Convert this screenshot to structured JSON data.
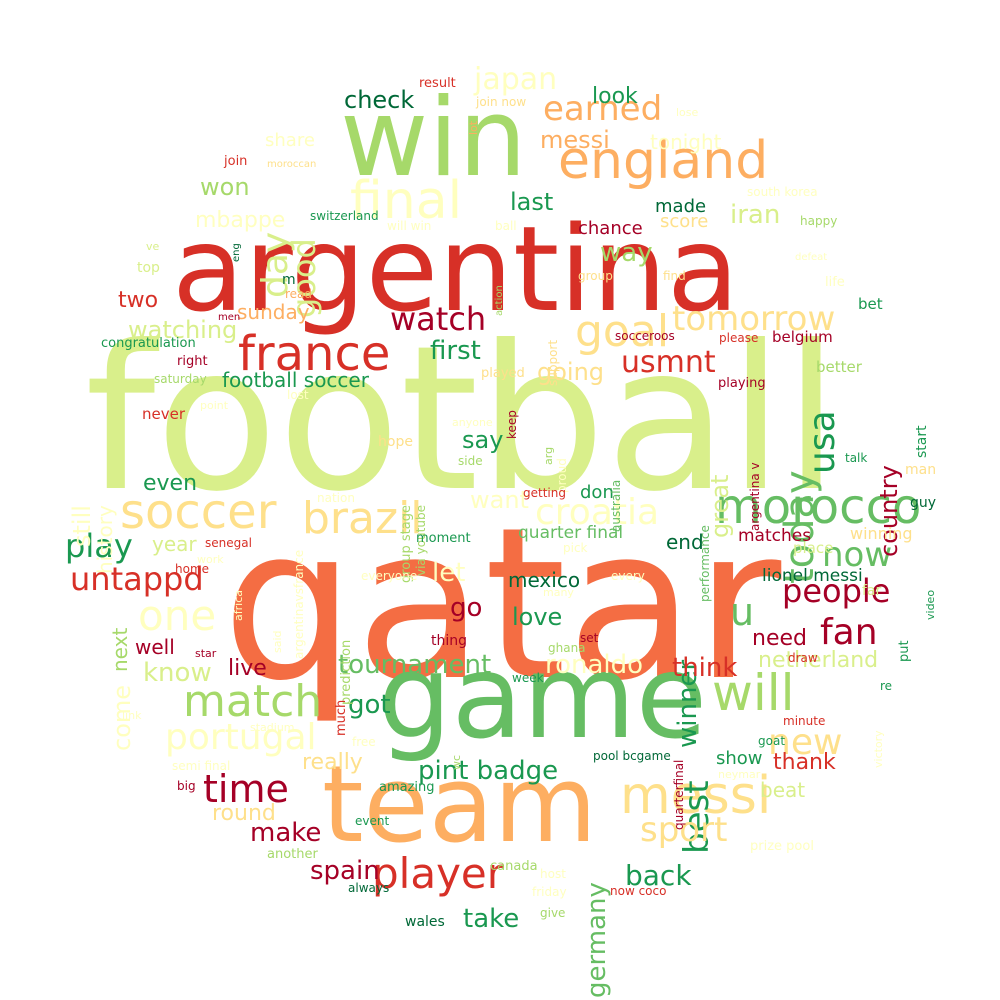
{
  "palette": [
    "#a50026",
    "#d73027",
    "#f46d43",
    "#fdae61",
    "#fee08b",
    "#ffffbf",
    "#d9ef8b",
    "#a6d96a",
    "#66bd63",
    "#1a9850",
    "#006837"
  ],
  "words": [
    {
      "text": "football",
      "color": "#d9ef8b"
    },
    {
      "text": "qatar",
      "color": "#f46d43"
    },
    {
      "text": "argentina",
      "color": "#d73027"
    },
    {
      "text": "win",
      "color": "#a6d96a"
    },
    {
      "text": "game",
      "color": "#66bd63"
    },
    {
      "text": "team",
      "color": "#fdae61"
    },
    {
      "text": "england",
      "color": "#fdae61"
    },
    {
      "text": "final",
      "color": "#ffffbf"
    },
    {
      "text": "france",
      "color": "#d73027"
    },
    {
      "text": "morocco",
      "color": "#66bd63"
    },
    {
      "text": "messi",
      "color": "#fee08b"
    },
    {
      "text": "soccer",
      "color": "#fee08b"
    },
    {
      "text": "brazil",
      "color": "#fee08b"
    },
    {
      "text": "goal",
      "color": "#fee08b"
    },
    {
      "text": "will",
      "color": "#a6d96a"
    },
    {
      "text": "match",
      "color": "#a6d96a"
    },
    {
      "text": "player",
      "color": "#d73027"
    },
    {
      "text": "today",
      "color": "#66bd63"
    },
    {
      "text": "usa",
      "color": "#1a9850"
    },
    {
      "text": "croatia",
      "color": "#ffffbf"
    },
    {
      "text": "tomorrow",
      "color": "#fee08b"
    },
    {
      "text": "portugal",
      "color": "#ffffbf"
    },
    {
      "text": "time",
      "color": "#a50026"
    },
    {
      "text": "people",
      "color": "#a50026"
    },
    {
      "text": "one",
      "color": "#ffffbf"
    },
    {
      "text": "now",
      "color": "#66bd63"
    },
    {
      "text": "watch",
      "color": "#a50026"
    },
    {
      "text": "day",
      "color": "#d9ef8b"
    },
    {
      "text": "fan",
      "color": "#a50026"
    },
    {
      "text": "best",
      "color": "#1a9850"
    },
    {
      "text": "sport",
      "color": "#fee08b"
    },
    {
      "text": "new",
      "color": "#fee08b"
    },
    {
      "text": "untappd",
      "color": "#d73027"
    },
    {
      "text": "play",
      "color": "#1a9850"
    },
    {
      "text": "u",
      "color": "#66bd63"
    },
    {
      "text": "earned",
      "color": "#fdae61"
    },
    {
      "text": "japan",
      "color": "#ffffbf"
    },
    {
      "text": "usmnt",
      "color": "#d73027"
    },
    {
      "text": "good",
      "color": "#d9ef8b"
    },
    {
      "text": "pint badge",
      "color": "#1a9850"
    },
    {
      "text": "tournament",
      "color": "#66bd63"
    },
    {
      "text": "germany",
      "color": "#66bd63"
    },
    {
      "text": "ronaldo",
      "color": "#ffffbf"
    },
    {
      "text": "winner",
      "color": "#1a9850"
    },
    {
      "text": "make",
      "color": "#a50026"
    },
    {
      "text": "back",
      "color": "#1a9850"
    },
    {
      "text": "take",
      "color": "#1a9850"
    },
    {
      "text": "spain",
      "color": "#a50026"
    },
    {
      "text": "country",
      "color": "#a50026"
    },
    {
      "text": "great",
      "color": "#d9ef8b"
    },
    {
      "text": "go",
      "color": "#a50026"
    },
    {
      "text": "love",
      "color": "#1a9850"
    },
    {
      "text": "first",
      "color": "#1a9850"
    },
    {
      "text": "watching",
      "color": "#d9ef8b"
    },
    {
      "text": "want",
      "color": "#ffffbf"
    },
    {
      "text": "think",
      "color": "#d73027"
    },
    {
      "text": "know",
      "color": "#d9ef8b"
    },
    {
      "text": "got",
      "color": "#1a9850"
    },
    {
      "text": "check",
      "color": "#006837"
    },
    {
      "text": "messi⁣",
      "color": "#fdae61"
    },
    {
      "text": "won",
      "color": "#a6d96a"
    },
    {
      "text": "last",
      "color": "#1a9850"
    },
    {
      "text": "way",
      "color": "#a6d96a"
    },
    {
      "text": "iran",
      "color": "#d9ef8b"
    },
    {
      "text": "going",
      "color": "#fee08b"
    },
    {
      "text": "mexico",
      "color": "#006837"
    },
    {
      "text": "let",
      "color": "#ffffbf"
    },
    {
      "text": "say",
      "color": "#1a9850"
    },
    {
      "text": "year",
      "color": "#d9ef8b"
    },
    {
      "text": "come",
      "color": "#ffffbf"
    },
    {
      "text": "need",
      "color": "#a50026"
    },
    {
      "text": "live",
      "color": "#a50026"
    },
    {
      "text": "well",
      "color": "#a50026"
    },
    {
      "text": "netherland",
      "color": "#d9ef8b"
    },
    {
      "text": "really",
      "color": "#fee08b"
    },
    {
      "text": "thank",
      "color": "#d73027"
    },
    {
      "text": "football soccer",
      "color": "#1a9850"
    },
    {
      "text": "sunday",
      "color": "#fdae61"
    },
    {
      "text": "two",
      "color": "#d73027"
    },
    {
      "text": "mbappe",
      "color": "#ffffbf"
    },
    {
      "text": "still",
      "color": "#ffffbf"
    },
    {
      "text": "history",
      "color": "#ffffbf"
    },
    {
      "text": "even",
      "color": "#1a9850"
    },
    {
      "text": "end",
      "color": "#006837"
    },
    {
      "text": "don",
      "color": "#1a9850"
    },
    {
      "text": "round",
      "color": "#fee08b"
    },
    {
      "text": "next",
      "color": "#a6d96a"
    },
    {
      "text": "look",
      "color": "#1a9850"
    },
    {
      "text": "made",
      "color": "#006837"
    },
    {
      "text": "chance",
      "color": "#a50026"
    },
    {
      "text": "score",
      "color": "#fee08b"
    },
    {
      "text": "tonight",
      "color": "#ffffbf"
    },
    {
      "text": "share",
      "color": "#ffffbf"
    },
    {
      "text": "beat",
      "color": "#d9ef8b"
    },
    {
      "text": "show",
      "color": "#1a9850"
    },
    {
      "text": "quarter final",
      "color": "#66bd63"
    },
    {
      "text": "lionel messi",
      "color": "#006837"
    },
    {
      "text": "matches",
      "color": "#a50026"
    },
    {
      "text": "belgium",
      "color": "#a50026"
    },
    {
      "text": "winning",
      "color": "#fee08b"
    },
    {
      "text": "place",
      "color": "#d9ef8b"
    },
    {
      "text": "better",
      "color": "#a6d96a"
    },
    {
      "text": "bet",
      "color": "#1a9850"
    },
    {
      "text": "start",
      "color": "#1a9850"
    },
    {
      "text": "man",
      "color": "#fee08b"
    },
    {
      "text": "guy",
      "color": "#006837"
    },
    {
      "text": "far",
      "color": "#d9ef8b"
    },
    {
      "text": "put",
      "color": "#1a9850"
    },
    {
      "text": "congratulation",
      "color": "#1a9850"
    },
    {
      "text": "right",
      "color": "#a50026"
    },
    {
      "text": "saturday",
      "color": "#a6d96a"
    },
    {
      "text": "never",
      "color": "#d73027"
    },
    {
      "text": "top",
      "color": "#d9ef8b"
    },
    {
      "text": "join",
      "color": "#d73027"
    },
    {
      "text": "moroccan",
      "color": "#fee08b"
    },
    {
      "text": "result",
      "color": "#d73027"
    },
    {
      "text": "join now",
      "color": "#fee08b"
    },
    {
      "text": "lose",
      "color": "#ffffbf"
    },
    {
      "text": "lot",
      "color": "#fdae61"
    },
    {
      "text": "switzerland",
      "color": "#1a9850"
    },
    {
      "text": "will win",
      "color": "#ffffbf"
    },
    {
      "text": "ball",
      "color": "#ffffbf"
    },
    {
      "text": "south korea",
      "color": "#ffffbf"
    },
    {
      "text": "happy",
      "color": "#a6d96a"
    },
    {
      "text": "group",
      "color": "#fee08b"
    },
    {
      "text": "find",
      "color": "#fee08b"
    },
    {
      "text": "life",
      "color": "#ffffbf"
    },
    {
      "text": "support",
      "color": "#fee08b"
    },
    {
      "text": "socceroos",
      "color": "#a50026"
    },
    {
      "text": "please",
      "color": "#d73027"
    },
    {
      "text": "playing",
      "color": "#a50026"
    },
    {
      "text": "played",
      "color": "#fee08b"
    },
    {
      "text": "keep",
      "color": "#a50026"
    },
    {
      "text": "group stage",
      "color": "#a6d96a"
    },
    {
      "text": "via youtube",
      "color": "#a6d96a"
    },
    {
      "text": "australia",
      "color": "#66bd63"
    },
    {
      "text": "argentina v",
      "color": "#a50026"
    },
    {
      "text": "performance",
      "color": "#66bd63"
    },
    {
      "text": "talk",
      "color": "#1a9850"
    },
    {
      "text": "hope",
      "color": "#fee08b"
    },
    {
      "text": "lost",
      "color": "#ffffbf"
    },
    {
      "text": "anyone",
      "color": "#ffffbf"
    },
    {
      "text": "arg",
      "color": "#a6d96a"
    },
    {
      "text": "proud",
      "color": "#ffffbf"
    },
    {
      "text": "side",
      "color": "#a6d96a"
    },
    {
      "text": "getting",
      "color": "#d73027"
    },
    {
      "text": "nation",
      "color": "#ffffbf"
    },
    {
      "text": "argentinavsfrance",
      "color": "#ffffbf"
    },
    {
      "text": "senegal",
      "color": "#d73027"
    },
    {
      "text": "moment",
      "color": "#1a9850"
    },
    {
      "text": "prediction",
      "color": "#a6d96a"
    },
    {
      "text": "everyone",
      "color": "#ffffbf"
    },
    {
      "text": "every",
      "color": "#ffffbf"
    },
    {
      "text": "pick",
      "color": "#ffffbf"
    },
    {
      "text": "ghana",
      "color": "#a6d96a"
    },
    {
      "text": "set",
      "color": "#a50026"
    },
    {
      "text": "thing",
      "color": "#a50026"
    },
    {
      "text": "week",
      "color": "#1a9850"
    },
    {
      "text": "draw",
      "color": "#d73027"
    },
    {
      "text": "minute",
      "color": "#d73027"
    },
    {
      "text": "goat",
      "color": "#1a9850"
    },
    {
      "text": "video",
      "color": "#1a9850"
    },
    {
      "text": "re",
      "color": "#1a9850"
    },
    {
      "text": "victory",
      "color": "#ffffbf"
    },
    {
      "text": "home",
      "color": "#d73027"
    },
    {
      "text": "work",
      "color": "#ffffbf"
    },
    {
      "text": "africa",
      "color": "#ffffbf"
    },
    {
      "text": "said",
      "color": "#ffffbf"
    },
    {
      "text": "star",
      "color": "#a50026"
    },
    {
      "text": "link",
      "color": "#ffffbf"
    },
    {
      "text": "stadium",
      "color": "#ffffbf"
    },
    {
      "text": "semi final",
      "color": "#ffffbf"
    },
    {
      "text": "big",
      "color": "#a50026"
    },
    {
      "text": "free",
      "color": "#ffffbf"
    },
    {
      "text": "much",
      "color": "#d73027"
    },
    {
      "text": "wc",
      "color": "#a6d96a"
    },
    {
      "text": "amazing",
      "color": "#1a9850"
    },
    {
      "text": "pool bcgame",
      "color": "#006837"
    },
    {
      "text": "quarterfinal",
      "color": "#a50026"
    },
    {
      "text": "neymar",
      "color": "#ffffbf"
    },
    {
      "text": "event",
      "color": "#1a9850"
    },
    {
      "text": "another",
      "color": "#a6d96a"
    },
    {
      "text": "prize pool",
      "color": "#ffffbf"
    },
    {
      "text": "canada",
      "color": "#a6d96a"
    },
    {
      "text": "host",
      "color": "#ffffbf"
    },
    {
      "text": "friday",
      "color": "#ffffbf"
    },
    {
      "text": "now coco",
      "color": "#d73027"
    },
    {
      "text": "always",
      "color": "#006837"
    },
    {
      "text": "give",
      "color": "#a6d96a"
    },
    {
      "text": "wales",
      "color": "#006837"
    },
    {
      "text": "ve",
      "color": "#d9ef8b"
    },
    {
      "text": "m",
      "color": "#006837"
    },
    {
      "text": "read",
      "color": "#fdae61"
    },
    {
      "text": "men",
      "color": "#a50026"
    },
    {
      "text": "eng",
      "color": "#006837"
    },
    {
      "text": "action",
      "color": "#a6d96a"
    },
    {
      "text": "point",
      "color": "#ffffbf"
    },
    {
      "text": "many",
      "color": "#ffffbf"
    },
    {
      "text": "defeat",
      "color": "#ffffbf"
    }
  ]
}
